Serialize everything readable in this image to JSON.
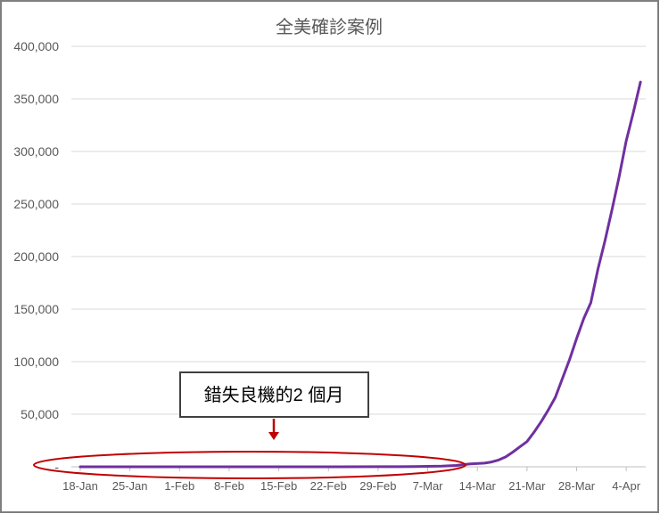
{
  "chart_data": {
    "type": "line",
    "title": "全美確診案例",
    "xlabel": "",
    "ylabel": "",
    "ylim": [
      0,
      400000
    ],
    "y_ticks": [
      "-",
      "50,000",
      "100,000",
      "150,000",
      "200,000",
      "250,000",
      "300,000",
      "350,000",
      "400,000"
    ],
    "y_tick_values": [
      0,
      50000,
      100000,
      150000,
      200000,
      250000,
      300000,
      350000,
      400000
    ],
    "x_ticks": [
      "18-Jan",
      "25-Jan",
      "1-Feb",
      "8-Feb",
      "15-Feb",
      "22-Feb",
      "29-Feb",
      "7-Mar",
      "14-Mar",
      "21-Mar",
      "28-Mar",
      "4-Apr"
    ],
    "grid": true,
    "series": [
      {
        "color": "#7030a0",
        "x": [
          "18-Jan",
          "25-Jan",
          "1-Feb",
          "8-Feb",
          "15-Feb",
          "22-Feb",
          "29-Feb",
          "1-Mar",
          "3-Mar",
          "5-Mar",
          "7-Mar",
          "9-Mar",
          "11-Mar",
          "13-Mar",
          "15-Mar",
          "16-Mar",
          "17-Mar",
          "18-Mar",
          "19-Mar",
          "20-Mar",
          "21-Mar",
          "22-Mar",
          "23-Mar",
          "24-Mar",
          "25-Mar",
          "26-Mar",
          "27-Mar",
          "28-Mar",
          "29-Mar",
          "30-Mar",
          "31-Mar",
          "1-Apr",
          "2-Apr",
          "3-Apr",
          "4-Apr",
          "5-Apr",
          "6-Apr"
        ],
        "values": [
          1,
          3,
          8,
          12,
          15,
          35,
          70,
          90,
          120,
          230,
          450,
          700,
          1300,
          2700,
          3500,
          4600,
          6400,
          9400,
          14000,
          19000,
          24000,
          33000,
          43000,
          54000,
          66000,
          84000,
          102000,
          122000,
          141000,
          156000,
          188000,
          215000,
          245000,
          276000,
          310000,
          337000,
          366000
        ]
      }
    ],
    "annotations": [
      {
        "text": "錯失良機的2 個月",
        "color": "#c00000"
      }
    ]
  }
}
